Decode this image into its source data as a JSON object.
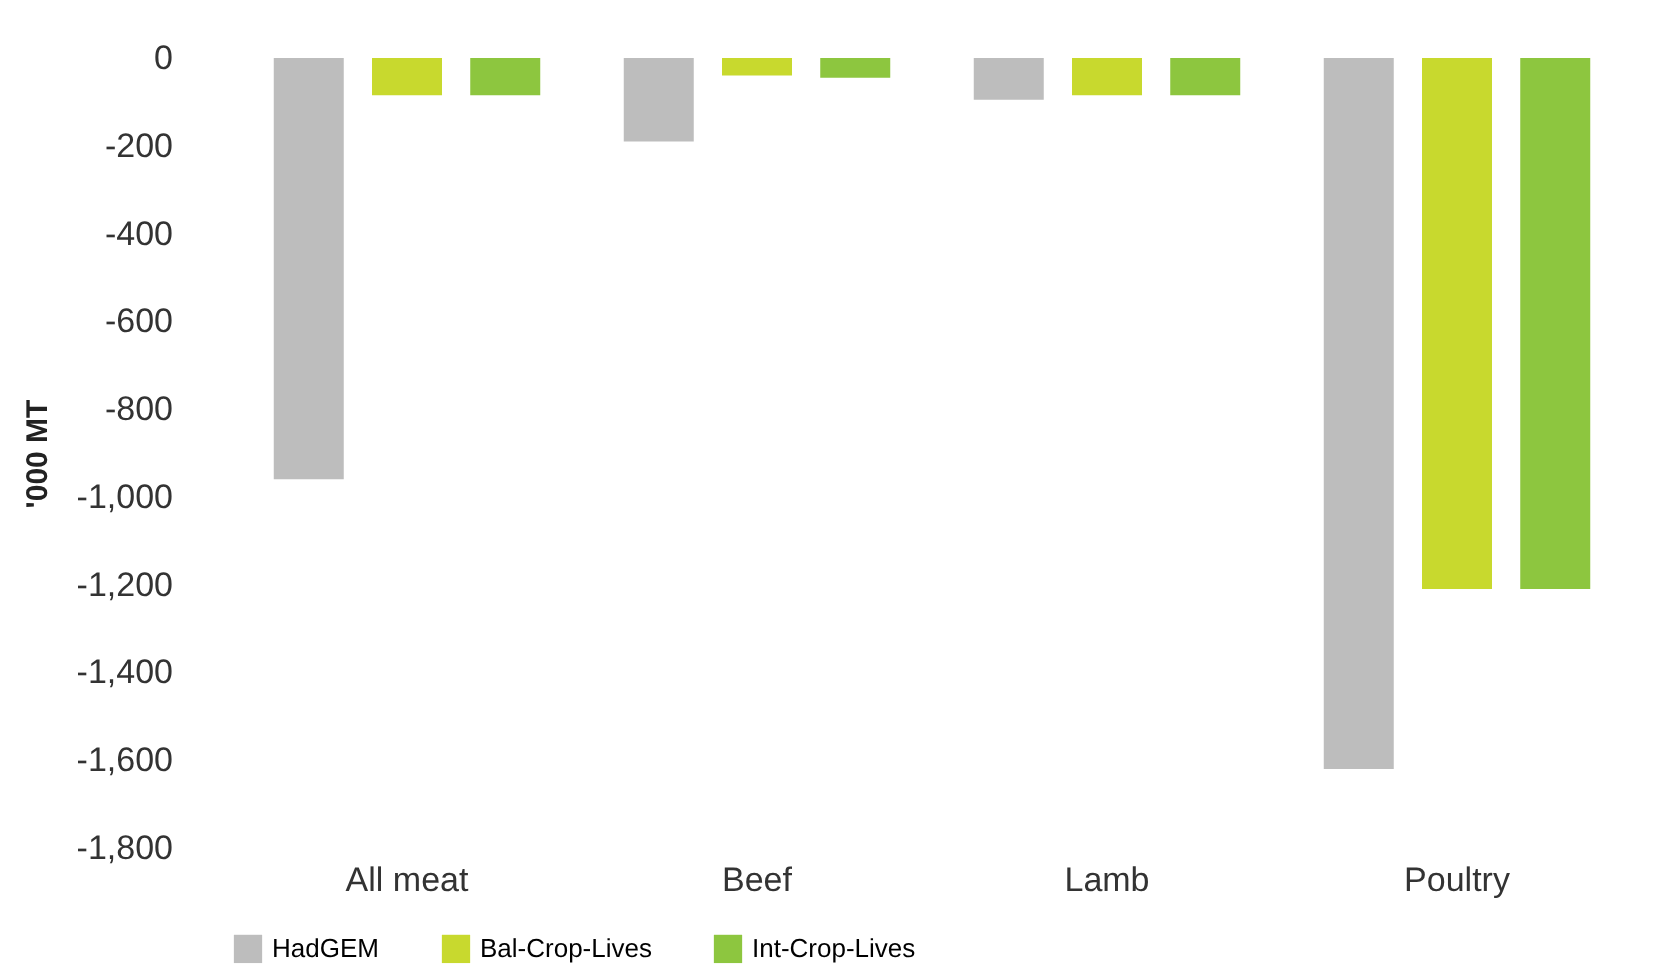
{
  "chart_data": {
    "type": "bar",
    "ylabel": "'000 MT",
    "categories": [
      "All meat",
      "Beef",
      "Lamb",
      "Poultry"
    ],
    "series": [
      {
        "name": "HadGEM",
        "color": "#bdbdbd",
        "values": [
          -960,
          -190,
          -95,
          -1620
        ]
      },
      {
        "name": "Bal-Crop-Lives",
        "color": "#c8d92e",
        "values": [
          -85,
          -40,
          -85,
          -1210
        ]
      },
      {
        "name": "Int-Crop-Lives",
        "color": "#8dc63f",
        "values": [
          -85,
          -45,
          -85,
          -1210
        ]
      }
    ],
    "ylim": [
      -1800,
      0
    ],
    "yticks": [
      {
        "value": -1800,
        "label": "-1,800"
      },
      {
        "value": -1600,
        "label": "-1,600"
      },
      {
        "value": -1400,
        "label": "-1,400"
      },
      {
        "value": -1200,
        "label": "-1,200"
      },
      {
        "value": -1000,
        "label": "-1,000"
      },
      {
        "value": -800,
        "label": "-800"
      },
      {
        "value": -600,
        "label": "-600"
      },
      {
        "value": -400,
        "label": "-400"
      },
      {
        "value": -200,
        "label": "-200"
      },
      0
    ],
    "grid": false,
    "legend": "bottom"
  }
}
